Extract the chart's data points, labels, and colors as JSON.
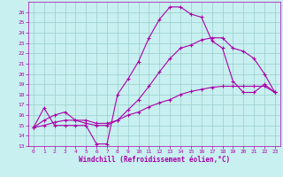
{
  "xlabel": "Windchill (Refroidissement éolien,°C)",
  "bg_color": "#c8f0f0",
  "line_color": "#aa00aa",
  "grid_color": "#99cccc",
  "xlim": [
    -0.5,
    23.5
  ],
  "ylim": [
    13,
    27
  ],
  "yticks": [
    13,
    14,
    15,
    16,
    17,
    18,
    19,
    20,
    21,
    22,
    23,
    24,
    25,
    26
  ],
  "xticks": [
    0,
    1,
    2,
    3,
    4,
    5,
    6,
    7,
    8,
    9,
    10,
    11,
    12,
    13,
    14,
    15,
    16,
    17,
    18,
    19,
    20,
    21,
    22,
    23
  ],
  "series1_x": [
    0,
    1,
    2,
    3,
    4,
    5,
    6,
    7,
    8,
    9,
    10,
    11,
    12,
    13,
    14,
    15,
    16,
    17,
    18,
    19,
    20,
    21,
    22,
    23
  ],
  "series1_y": [
    14.8,
    16.7,
    15.0,
    15.0,
    15.0,
    15.0,
    13.2,
    13.2,
    18.0,
    19.5,
    21.2,
    23.5,
    25.3,
    26.5,
    26.5,
    25.8,
    25.5,
    23.2,
    22.5,
    19.3,
    18.2,
    18.2,
    19.0,
    18.2
  ],
  "series2_x": [
    0,
    1,
    2,
    3,
    4,
    5,
    6,
    7,
    8,
    9,
    10,
    11,
    12,
    13,
    14,
    15,
    16,
    17,
    18,
    19,
    20,
    21,
    22,
    23
  ],
  "series2_y": [
    14.8,
    15.5,
    16.0,
    16.3,
    15.5,
    15.5,
    15.2,
    15.2,
    15.5,
    16.0,
    16.3,
    16.8,
    17.2,
    17.5,
    18.0,
    18.3,
    18.5,
    18.7,
    18.8,
    18.8,
    18.8,
    18.8,
    18.8,
    18.2
  ],
  "series3_x": [
    0,
    1,
    2,
    3,
    4,
    5,
    6,
    7,
    8,
    9,
    10,
    11,
    12,
    13,
    14,
    15,
    16,
    17,
    18,
    19,
    20,
    21,
    22,
    23
  ],
  "series3_y": [
    14.8,
    15.0,
    15.3,
    15.5,
    15.5,
    15.2,
    15.0,
    15.0,
    15.5,
    16.5,
    17.5,
    18.8,
    20.2,
    21.5,
    22.5,
    22.8,
    23.3,
    23.5,
    23.5,
    22.5,
    22.2,
    21.5,
    20.0,
    18.2
  ],
  "marker": "+",
  "markersize": 3,
  "linewidth": 0.8,
  "tick_fontsize": 4.5,
  "label_fontsize": 5.5
}
